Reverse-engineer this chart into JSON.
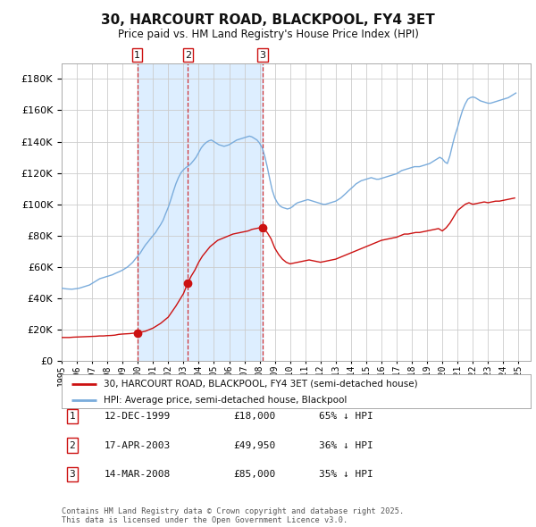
{
  "title": "30, HARCOURT ROAD, BLACKPOOL, FY4 3ET",
  "subtitle": "Price paid vs. HM Land Registry's House Price Index (HPI)",
  "ylim": [
    0,
    190000
  ],
  "yticks": [
    0,
    20000,
    40000,
    60000,
    80000,
    100000,
    120000,
    140000,
    160000,
    180000
  ],
  "xlim_start": 1995.0,
  "xlim_end": 2025.8,
  "legend_line1": "30, HARCOURT ROAD, BLACKPOOL, FY4 3ET (semi-detached house)",
  "legend_line2": "HPI: Average price, semi-detached house, Blackpool",
  "sales": [
    {
      "label": "1",
      "date": "12-DEC-1999",
      "price": 18000,
      "pct": "65%",
      "year": 1999.96
    },
    {
      "label": "2",
      "date": "17-APR-2003",
      "price": 49950,
      "pct": "36%",
      "year": 2003.29
    },
    {
      "label": "3",
      "date": "14-MAR-2008",
      "price": 85000,
      "pct": "35%",
      "year": 2008.21
    }
  ],
  "footnote": "Contains HM Land Registry data © Crown copyright and database right 2025.\nThis data is licensed under the Open Government Licence v3.0.",
  "hpi_color": "#7aacdc",
  "price_color": "#cc1111",
  "sale_marker_color": "#cc1111",
  "shade_color": "#ddeeff",
  "bg_color": "#ffffff",
  "grid_color": "#cccccc",
  "hpi_data_x": [
    1995.0,
    1995.17,
    1995.33,
    1995.5,
    1995.67,
    1995.83,
    1996.0,
    1996.17,
    1996.33,
    1996.5,
    1996.67,
    1996.83,
    1997.0,
    1997.17,
    1997.33,
    1997.5,
    1997.67,
    1997.83,
    1998.0,
    1998.17,
    1998.33,
    1998.5,
    1998.67,
    1998.83,
    1999.0,
    1999.17,
    1999.33,
    1999.5,
    1999.67,
    1999.83,
    2000.0,
    2000.17,
    2000.33,
    2000.5,
    2000.67,
    2000.83,
    2001.0,
    2001.17,
    2001.33,
    2001.5,
    2001.67,
    2001.83,
    2002.0,
    2002.17,
    2002.33,
    2002.5,
    2002.67,
    2002.83,
    2003.0,
    2003.17,
    2003.33,
    2003.5,
    2003.67,
    2003.83,
    2004.0,
    2004.17,
    2004.33,
    2004.5,
    2004.67,
    2004.83,
    2005.0,
    2005.17,
    2005.33,
    2005.5,
    2005.67,
    2005.83,
    2006.0,
    2006.17,
    2006.33,
    2006.5,
    2006.67,
    2006.83,
    2007.0,
    2007.17,
    2007.33,
    2007.5,
    2007.67,
    2007.83,
    2008.0,
    2008.17,
    2008.33,
    2008.5,
    2008.67,
    2008.83,
    2009.0,
    2009.17,
    2009.33,
    2009.5,
    2009.67,
    2009.83,
    2010.0,
    2010.17,
    2010.33,
    2010.5,
    2010.67,
    2010.83,
    2011.0,
    2011.17,
    2011.33,
    2011.5,
    2011.67,
    2011.83,
    2012.0,
    2012.17,
    2012.33,
    2012.5,
    2012.67,
    2012.83,
    2013.0,
    2013.17,
    2013.33,
    2013.5,
    2013.67,
    2013.83,
    2014.0,
    2014.17,
    2014.33,
    2014.5,
    2014.67,
    2014.83,
    2015.0,
    2015.17,
    2015.33,
    2015.5,
    2015.67,
    2015.83,
    2016.0,
    2016.17,
    2016.33,
    2016.5,
    2016.67,
    2016.83,
    2017.0,
    2017.17,
    2017.33,
    2017.5,
    2017.67,
    2017.83,
    2018.0,
    2018.17,
    2018.33,
    2018.5,
    2018.67,
    2018.83,
    2019.0,
    2019.17,
    2019.33,
    2019.5,
    2019.67,
    2019.83,
    2020.0,
    2020.17,
    2020.33,
    2020.5,
    2020.67,
    2020.83,
    2021.0,
    2021.17,
    2021.33,
    2021.5,
    2021.67,
    2021.83,
    2022.0,
    2022.17,
    2022.33,
    2022.5,
    2022.67,
    2022.83,
    2023.0,
    2023.17,
    2023.33,
    2023.5,
    2023.67,
    2023.83,
    2024.0,
    2024.17,
    2024.33,
    2024.5,
    2024.67,
    2024.83
  ],
  "hpi_data_y": [
    46500,
    46200,
    46000,
    45900,
    45800,
    46000,
    46200,
    46500,
    47000,
    47500,
    48000,
    48500,
    49500,
    50500,
    51500,
    52500,
    53000,
    53500,
    54000,
    54500,
    55000,
    55800,
    56500,
    57200,
    58000,
    59000,
    60000,
    61500,
    63000,
    65000,
    67000,
    69000,
    71500,
    74000,
    76000,
    78000,
    80000,
    82000,
    84500,
    87000,
    90000,
    94000,
    98000,
    103000,
    108000,
    113000,
    117000,
    120000,
    122000,
    123500,
    124500,
    126000,
    128000,
    130000,
    133000,
    136000,
    138000,
    139500,
    140500,
    141000,
    140000,
    139000,
    138000,
    137500,
    137000,
    137500,
    138000,
    139000,
    140000,
    141000,
    141500,
    142000,
    142500,
    143000,
    143500,
    143000,
    142000,
    141000,
    139000,
    136000,
    131000,
    124000,
    116000,
    109000,
    104000,
    101000,
    99000,
    98000,
    97500,
    97000,
    97500,
    98500,
    100000,
    101000,
    101500,
    102000,
    102500,
    103000,
    102500,
    102000,
    101500,
    101000,
    100500,
    100000,
    100000,
    100500,
    101000,
    101500,
    102000,
    103000,
    104000,
    105500,
    107000,
    108500,
    110000,
    111500,
    113000,
    114000,
    115000,
    115500,
    116000,
    116500,
    117000,
    116500,
    116000,
    116000,
    116500,
    117000,
    117500,
    118000,
    118500,
    119000,
    119500,
    120500,
    121500,
    122000,
    122500,
    123000,
    123500,
    124000,
    124000,
    124000,
    124500,
    125000,
    125500,
    126000,
    127000,
    128000,
    129000,
    130000,
    129000,
    127000,
    126000,
    131000,
    138000,
    144000,
    149000,
    155000,
    160000,
    164000,
    167000,
    168000,
    168500,
    168000,
    167000,
    166000,
    165500,
    165000,
    164500,
    164500,
    165000,
    165500,
    166000,
    166500,
    167000,
    167500,
    168000,
    169000,
    170000,
    171000
  ],
  "price_data_x": [
    1995.0,
    1995.25,
    1995.5,
    1995.75,
    1996.0,
    1996.25,
    1996.5,
    1996.75,
    1997.0,
    1997.25,
    1997.5,
    1997.75,
    1998.0,
    1998.25,
    1998.5,
    1998.75,
    1999.0,
    1999.5,
    1999.96,
    2000.0,
    2000.25,
    2000.5,
    2000.75,
    2001.0,
    2001.5,
    2002.0,
    2002.5,
    2003.0,
    2003.29,
    2003.5,
    2003.75,
    2004.0,
    2004.25,
    2004.5,
    2004.75,
    2005.0,
    2005.25,
    2005.5,
    2005.75,
    2006.0,
    2006.25,
    2006.5,
    2006.75,
    2007.0,
    2007.25,
    2007.5,
    2007.75,
    2008.0,
    2008.21,
    2008.5,
    2008.75,
    2009.0,
    2009.25,
    2009.5,
    2009.75,
    2010.0,
    2010.25,
    2010.5,
    2010.75,
    2011.0,
    2011.25,
    2011.5,
    2011.75,
    2012.0,
    2012.25,
    2012.5,
    2012.75,
    2013.0,
    2013.25,
    2013.5,
    2013.75,
    2014.0,
    2014.25,
    2014.5,
    2014.75,
    2015.0,
    2015.25,
    2015.5,
    2015.75,
    2016.0,
    2016.25,
    2016.5,
    2016.75,
    2017.0,
    2017.25,
    2017.5,
    2017.75,
    2018.0,
    2018.25,
    2018.5,
    2018.75,
    2019.0,
    2019.25,
    2019.5,
    2019.75,
    2020.0,
    2020.25,
    2020.5,
    2020.75,
    2021.0,
    2021.25,
    2021.5,
    2021.75,
    2022.0,
    2022.25,
    2022.5,
    2022.75,
    2023.0,
    2023.25,
    2023.5,
    2023.75,
    2024.0,
    2024.25,
    2024.5,
    2024.75
  ],
  "price_data_y": [
    15000,
    15000,
    15000,
    15200,
    15300,
    15400,
    15500,
    15600,
    15700,
    15800,
    16000,
    16000,
    16200,
    16300,
    16500,
    17000,
    17200,
    17500,
    18000,
    18200,
    18500,
    19000,
    20000,
    21000,
    24000,
    28000,
    35000,
    43000,
    49950,
    54000,
    58000,
    63000,
    67000,
    70000,
    73000,
    75000,
    77000,
    78000,
    79000,
    80000,
    81000,
    81500,
    82000,
    82500,
    83000,
    84000,
    84500,
    85000,
    85000,
    82000,
    78000,
    72000,
    68000,
    65000,
    63000,
    62000,
    62500,
    63000,
    63500,
    64000,
    64500,
    64000,
    63500,
    63000,
    63500,
    64000,
    64500,
    65000,
    66000,
    67000,
    68000,
    69000,
    70000,
    71000,
    72000,
    73000,
    74000,
    75000,
    76000,
    77000,
    77500,
    78000,
    78500,
    79000,
    80000,
    81000,
    81000,
    81500,
    82000,
    82000,
    82500,
    83000,
    83500,
    84000,
    84500,
    83000,
    85000,
    88000,
    92000,
    96000,
    98000,
    100000,
    101000,
    100000,
    100500,
    101000,
    101500,
    101000,
    101500,
    102000,
    102000,
    102500,
    103000,
    103500,
    104000
  ]
}
